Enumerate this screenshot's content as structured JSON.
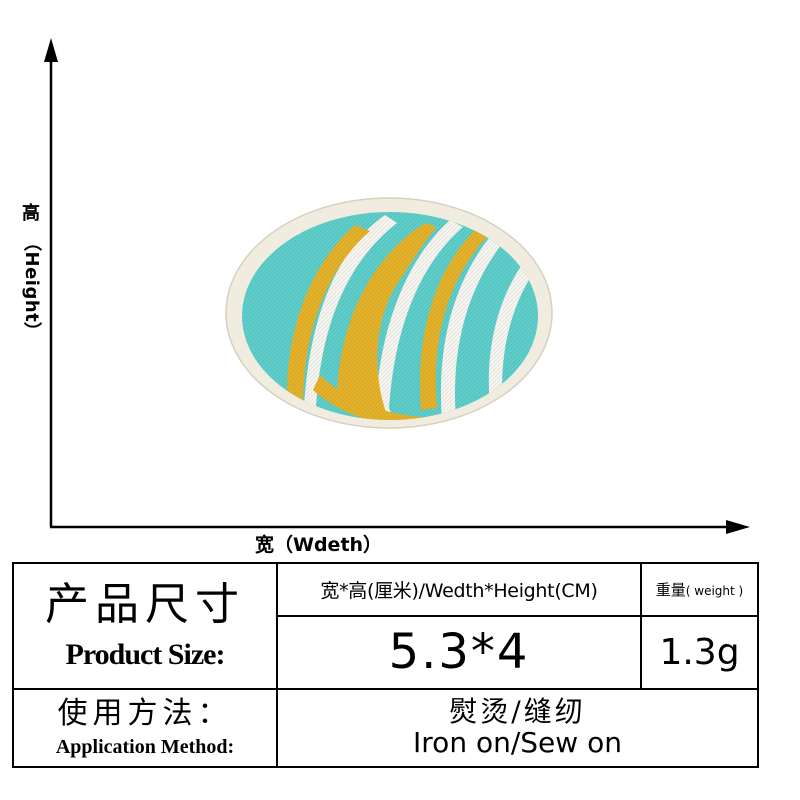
{
  "axes": {
    "vertical_label_cn": "高",
    "vertical_label_en": "（Height）",
    "horizontal_label": "宽（Wdeth）"
  },
  "product": {
    "subject": "embroidered oval patch with turquoise background and gold and white swirl stripes",
    "colors": {
      "background": "#5ecfcb",
      "gold": "#e5b22a",
      "white": "#f7f5ef",
      "border": "#f0ecdf"
    }
  },
  "table": {
    "product_size_cn": "产品尺寸",
    "product_size_en": "Product Size:",
    "size_header": "宽*高(厘米)/Wedth*Height(CM)",
    "weight_header_cn": "重量",
    "weight_header_en": "( weight )",
    "size_value": "5.3*4",
    "weight_value": "1.3g",
    "application_method_cn": "使用方法：",
    "application_method_en": "Application Method:",
    "method_cn": "熨烫/缝纫",
    "method_en": "Iron on/Sew on"
  }
}
